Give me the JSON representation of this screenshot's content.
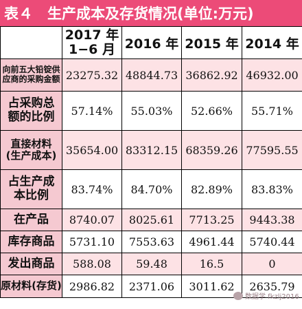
{
  "title": "表４　生产成本及存货情况(单位:万元)",
  "header": {
    "col1_line1": "2017 年",
    "col1_line2": "1−6 月",
    "col2": "2016 年",
    "col3": "2015 年",
    "col4": "2014 年"
  },
  "rows": [
    {
      "label_line1": "向前五大铅锭供",
      "label_line2": "应商的采购金额",
      "values": [
        "23275.32",
        "48844.73",
        "36862.92",
        "46932.00"
      ]
    },
    {
      "label_line1": "占采购总",
      "label_line2": "额的比例",
      "values": [
        "57.14%",
        "55.03%",
        "52.66%",
        "55.71%"
      ]
    },
    {
      "label_line1": "直接材料",
      "label_line2": "(生产成本)",
      "values": [
        "35654.00",
        "83312.15",
        "68359.26",
        "77595.55"
      ]
    },
    {
      "label_line1": "占生产成",
      "label_line2": "本比例",
      "values": [
        "83.74%",
        "84.70%",
        "82.89%",
        "83.83%"
      ]
    },
    {
      "label_line1": "在产品",
      "label_line2": "",
      "values": [
        "8740.07",
        "8025.61",
        "7713.25",
        "9443.38"
      ]
    },
    {
      "label_line1": "库存商品",
      "label_line2": "",
      "values": [
        "5731.10",
        "7553.63",
        "4961.44",
        "5740.44"
      ]
    },
    {
      "label_line1": "发出商品",
      "label_line2": "",
      "values": [
        "588.08",
        "59.48",
        "16.5",
        "0"
      ]
    },
    {
      "label_line1": "原材料(存货)",
      "label_line2": "",
      "values": [
        "2986.82",
        "2371.06",
        "3011.62",
        "2635.79"
      ]
    }
  ],
  "watermark": "数据学 fkzlj2016",
  "colors": {
    "title_bg": "#ec4b78",
    "label_bg": "#f5c9d1",
    "row_pink_bg": "#fde2e5"
  }
}
